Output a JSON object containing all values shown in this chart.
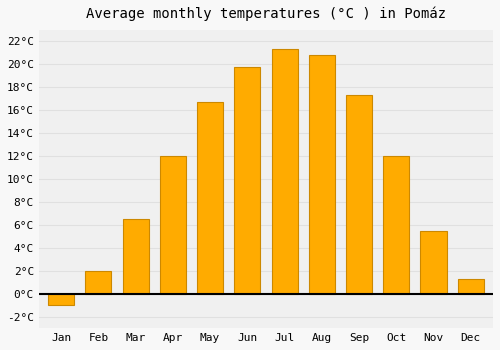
{
  "title": "Average monthly temperatures (°C ) in Pomáz",
  "months": [
    "Jan",
    "Feb",
    "Mar",
    "Apr",
    "May",
    "Jun",
    "Jul",
    "Aug",
    "Sep",
    "Oct",
    "Nov",
    "Dec"
  ],
  "values": [
    -1.0,
    2.0,
    6.5,
    12.0,
    16.7,
    19.7,
    21.3,
    20.8,
    17.3,
    12.0,
    5.5,
    1.3
  ],
  "bar_color": "#FFAB00",
  "bar_edge_color": "#CC8800",
  "background_color": "#f8f8f8",
  "plot_bg_color": "#f0f0f0",
  "grid_color": "#e0e0e0",
  "ylim": [
    -3,
    23
  ],
  "yticks": [
    -2,
    0,
    2,
    4,
    6,
    8,
    10,
    12,
    14,
    16,
    18,
    20,
    22
  ],
  "title_fontsize": 10,
  "tick_fontsize": 8
}
